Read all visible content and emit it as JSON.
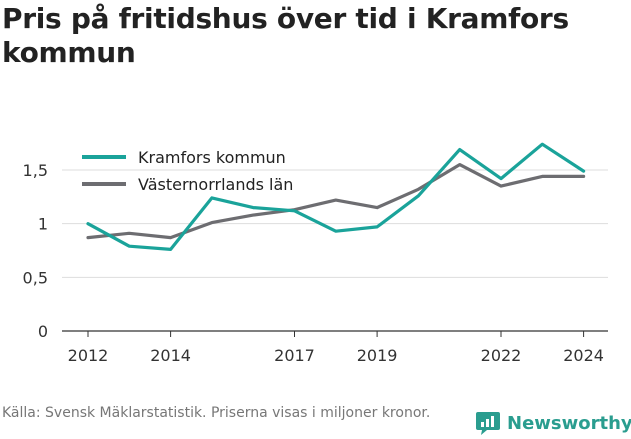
{
  "title": "Pris på fritidshus över tid i Kramfors kommun",
  "source": "Källa: Svensk Mäklarstatistik. Priserna visas i miljoner kronor.",
  "brand": {
    "name": "Newsworthy",
    "icon": "newsworthy-logo-icon"
  },
  "colors": {
    "kramfors": "#1aa39a",
    "lan": "#6d6d71",
    "grid": "#dddddd",
    "axis": "#333333"
  },
  "chart_data": {
    "type": "line",
    "x": [
      2012,
      2013,
      2014,
      2015,
      2016,
      2017,
      2018,
      2019,
      2020,
      2021,
      2022,
      2023,
      2024
    ],
    "series": [
      {
        "name": "Kramfors kommun",
        "values": [
          1.0,
          0.79,
          0.76,
          1.24,
          1.15,
          1.12,
          0.93,
          0.97,
          1.26,
          1.69,
          1.42,
          1.74,
          1.49
        ]
      },
      {
        "name": "Västernorrlands län",
        "values": [
          0.87,
          0.91,
          0.87,
          1.01,
          1.08,
          1.13,
          1.22,
          1.15,
          1.32,
          1.55,
          1.35,
          1.44,
          1.44
        ]
      }
    ],
    "x_ticks": [
      "2012",
      "2014",
      "2017",
      "2019",
      "2022",
      "2024"
    ],
    "y_ticks": [
      "0",
      "0,5",
      "1",
      "1,5"
    ],
    "ylim": [
      0,
      1.8
    ],
    "grid": true,
    "legend": "top-left"
  }
}
